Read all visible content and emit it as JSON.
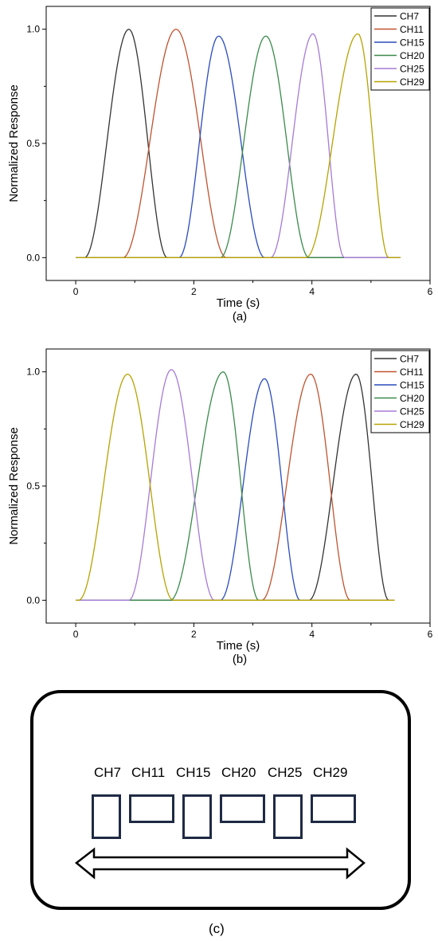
{
  "chart_data": [
    {
      "type": "line",
      "panel_label": "(a)",
      "xlabel": "Time (s)",
      "ylabel": "Normalized Response",
      "xlim": [
        -0.5,
        6
      ],
      "ylim": [
        -0.1,
        1.1
      ],
      "xticks": [
        0,
        2,
        4,
        6
      ],
      "yticks": [
        0.0,
        0.5,
        1.0
      ],
      "tick_labels_x": [
        "0",
        "2",
        "4",
        "6"
      ],
      "tick_labels_y": [
        "0.0",
        "0.5",
        "1.0"
      ],
      "x_range": [
        0,
        5.5
      ],
      "legend": "top-right",
      "series": [
        {
          "name": "CH7",
          "color": "#333333",
          "start": 0.15,
          "peak": 0.9,
          "end": 1.55,
          "height": 1.0
        },
        {
          "name": "CH11",
          "color": "#c0532f",
          "start": 0.8,
          "peak": 1.7,
          "end": 2.55,
          "height": 1.0
        },
        {
          "name": "CH15",
          "color": "#2a4bbd",
          "start": 1.75,
          "peak": 2.42,
          "end": 3.2,
          "height": 0.97
        },
        {
          "name": "CH20",
          "color": "#3a8a4a",
          "start": 2.45,
          "peak": 3.22,
          "end": 3.95,
          "height": 0.97
        },
        {
          "name": "CH25",
          "color": "#a77ad6",
          "start": 3.3,
          "peak": 4.02,
          "end": 4.55,
          "height": 0.98
        },
        {
          "name": "CH29",
          "color": "#b6a300",
          "start": 3.9,
          "peak": 4.78,
          "end": 5.3,
          "height": 0.98
        }
      ]
    },
    {
      "type": "line",
      "panel_label": "(b)",
      "xlabel": "Time (s)",
      "ylabel": "Normalized Response",
      "xlim": [
        -0.5,
        6
      ],
      "ylim": [
        -0.1,
        1.1
      ],
      "xticks": [
        0,
        2,
        4,
        6
      ],
      "yticks": [
        0.0,
        0.5,
        1.0
      ],
      "tick_labels_x": [
        "0",
        "2",
        "4",
        "6"
      ],
      "tick_labels_y": [
        "0.0",
        "0.5",
        "1.0"
      ],
      "x_range": [
        0,
        5.4
      ],
      "legend": "top-right",
      "series": [
        {
          "name": "CH7",
          "color": "#333333",
          "start": 3.95,
          "peak": 4.75,
          "end": 5.3,
          "height": 0.99
        },
        {
          "name": "CH11",
          "color": "#c0532f",
          "start": 3.15,
          "peak": 3.98,
          "end": 4.65,
          "height": 0.99
        },
        {
          "name": "CH15",
          "color": "#2a4bbd",
          "start": 2.45,
          "peak": 3.2,
          "end": 3.8,
          "height": 0.97
        },
        {
          "name": "CH20",
          "color": "#3a8a4a",
          "start": 1.6,
          "peak": 2.5,
          "end": 3.1,
          "height": 1.0
        },
        {
          "name": "CH25",
          "color": "#a77ad6",
          "start": 0.9,
          "peak": 1.62,
          "end": 2.35,
          "height": 1.01
        },
        {
          "name": "CH29",
          "color": "#b6a300",
          "start": 0.05,
          "peak": 0.88,
          "end": 1.65,
          "height": 0.99
        }
      ]
    }
  ],
  "diagram": {
    "panel_label": "(c)",
    "channels": [
      "CH7",
      "CH11",
      "CH15",
      "CH20",
      "CH25",
      "CH29"
    ]
  }
}
